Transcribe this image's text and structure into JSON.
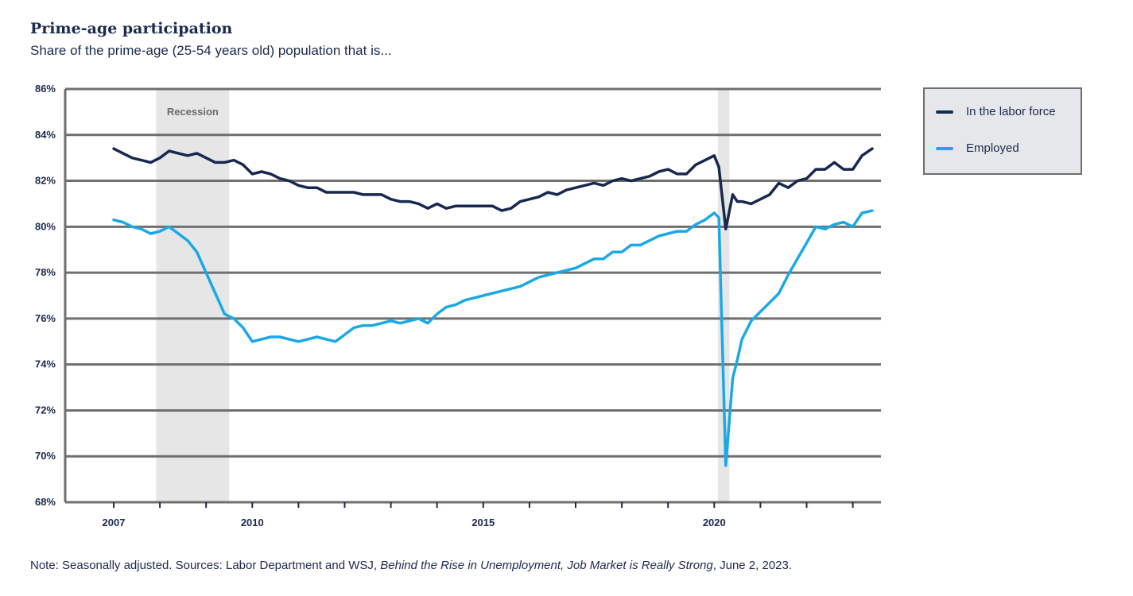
{
  "chart_data": {
    "type": "line",
    "title": "Prime-age participation",
    "subtitle": "Share of the prime-age (25-54 years old) population that is...",
    "ylim": [
      68,
      86
    ],
    "y_ticks": [
      "68%",
      "70%",
      "72%",
      "74%",
      "76%",
      "78%",
      "80%",
      "82%",
      "84%",
      "86%"
    ],
    "y_tick_values": [
      68,
      70,
      72,
      74,
      76,
      78,
      80,
      82,
      84,
      86
    ],
    "xlim": [
      2007.0,
      2023.42
    ],
    "x_ticks": [
      {
        "label": "2007",
        "year": 2007
      },
      {
        "label": "2010",
        "year": 2010
      },
      {
        "label": "2015",
        "year": 2015
      },
      {
        "label": "2020",
        "year": 2020
      }
    ],
    "grid": true,
    "legend_position": "right",
    "shaded_periods": [
      {
        "label": "Recession",
        "start": 2007.92,
        "end": 2009.5
      },
      {
        "label": "",
        "start": 2020.08,
        "end": 2020.33
      }
    ],
    "series": [
      {
        "name": "In the labor force",
        "color": "#17284f",
        "points": [
          [
            2007.0,
            83.4
          ],
          [
            2007.2,
            83.2
          ],
          [
            2007.4,
            83.0
          ],
          [
            2007.6,
            82.9
          ],
          [
            2007.8,
            82.8
          ],
          [
            2008.0,
            83.0
          ],
          [
            2008.2,
            83.3
          ],
          [
            2008.4,
            83.2
          ],
          [
            2008.6,
            83.1
          ],
          [
            2008.8,
            83.2
          ],
          [
            2009.0,
            83.0
          ],
          [
            2009.2,
            82.8
          ],
          [
            2009.4,
            82.8
          ],
          [
            2009.6,
            82.9
          ],
          [
            2009.8,
            82.7
          ],
          [
            2010.0,
            82.3
          ],
          [
            2010.2,
            82.4
          ],
          [
            2010.4,
            82.3
          ],
          [
            2010.6,
            82.1
          ],
          [
            2010.8,
            82.0
          ],
          [
            2011.0,
            81.8
          ],
          [
            2011.2,
            81.7
          ],
          [
            2011.4,
            81.7
          ],
          [
            2011.6,
            81.5
          ],
          [
            2011.8,
            81.5
          ],
          [
            2012.0,
            81.5
          ],
          [
            2012.2,
            81.5
          ],
          [
            2012.4,
            81.4
          ],
          [
            2012.6,
            81.4
          ],
          [
            2012.8,
            81.4
          ],
          [
            2013.0,
            81.2
          ],
          [
            2013.2,
            81.1
          ],
          [
            2013.4,
            81.1
          ],
          [
            2013.6,
            81.0
          ],
          [
            2013.8,
            80.8
          ],
          [
            2014.0,
            81.0
          ],
          [
            2014.2,
            80.8
          ],
          [
            2014.4,
            80.9
          ],
          [
            2014.6,
            80.9
          ],
          [
            2014.8,
            80.9
          ],
          [
            2015.0,
            80.9
          ],
          [
            2015.2,
            80.9
          ],
          [
            2015.4,
            80.7
          ],
          [
            2015.6,
            80.8
          ],
          [
            2015.8,
            81.1
          ],
          [
            2016.0,
            81.2
          ],
          [
            2016.2,
            81.3
          ],
          [
            2016.4,
            81.5
          ],
          [
            2016.6,
            81.4
          ],
          [
            2016.8,
            81.6
          ],
          [
            2017.0,
            81.7
          ],
          [
            2017.2,
            81.8
          ],
          [
            2017.4,
            81.9
          ],
          [
            2017.6,
            81.8
          ],
          [
            2017.8,
            82.0
          ],
          [
            2018.0,
            82.1
          ],
          [
            2018.2,
            82.0
          ],
          [
            2018.4,
            82.1
          ],
          [
            2018.6,
            82.2
          ],
          [
            2018.8,
            82.4
          ],
          [
            2019.0,
            82.5
          ],
          [
            2019.2,
            82.3
          ],
          [
            2019.4,
            82.3
          ],
          [
            2019.6,
            82.7
          ],
          [
            2019.8,
            82.9
          ],
          [
            2020.0,
            83.1
          ],
          [
            2020.1,
            82.6
          ],
          [
            2020.25,
            79.9
          ],
          [
            2020.4,
            81.4
          ],
          [
            2020.5,
            81.1
          ],
          [
            2020.6,
            81.1
          ],
          [
            2020.8,
            81.0
          ],
          [
            2021.0,
            81.2
          ],
          [
            2021.2,
            81.4
          ],
          [
            2021.4,
            81.9
          ],
          [
            2021.6,
            81.7
          ],
          [
            2021.8,
            82.0
          ],
          [
            2022.0,
            82.1
          ],
          [
            2022.2,
            82.5
          ],
          [
            2022.4,
            82.5
          ],
          [
            2022.6,
            82.8
          ],
          [
            2022.8,
            82.5
          ],
          [
            2023.0,
            82.5
          ],
          [
            2023.2,
            83.1
          ],
          [
            2023.42,
            83.4
          ]
        ]
      },
      {
        "name": "Employed",
        "color": "#1aa9e6",
        "points": [
          [
            2007.0,
            80.3
          ],
          [
            2007.2,
            80.2
          ],
          [
            2007.4,
            80.0
          ],
          [
            2007.6,
            79.9
          ],
          [
            2007.8,
            79.7
          ],
          [
            2008.0,
            79.8
          ],
          [
            2008.2,
            80.0
          ],
          [
            2008.4,
            79.7
          ],
          [
            2008.6,
            79.4
          ],
          [
            2008.8,
            78.9
          ],
          [
            2009.0,
            78.0
          ],
          [
            2009.2,
            77.1
          ],
          [
            2009.4,
            76.2
          ],
          [
            2009.6,
            76.0
          ],
          [
            2009.8,
            75.6
          ],
          [
            2010.0,
            75.0
          ],
          [
            2010.2,
            75.1
          ],
          [
            2010.4,
            75.2
          ],
          [
            2010.6,
            75.2
          ],
          [
            2010.8,
            75.1
          ],
          [
            2011.0,
            75.0
          ],
          [
            2011.2,
            75.1
          ],
          [
            2011.4,
            75.2
          ],
          [
            2011.6,
            75.1
          ],
          [
            2011.8,
            75.0
          ],
          [
            2012.0,
            75.3
          ],
          [
            2012.2,
            75.6
          ],
          [
            2012.4,
            75.7
          ],
          [
            2012.6,
            75.7
          ],
          [
            2012.8,
            75.8
          ],
          [
            2013.0,
            75.9
          ],
          [
            2013.2,
            75.8
          ],
          [
            2013.4,
            75.9
          ],
          [
            2013.6,
            76.0
          ],
          [
            2013.8,
            75.8
          ],
          [
            2014.0,
            76.2
          ],
          [
            2014.2,
            76.5
          ],
          [
            2014.4,
            76.6
          ],
          [
            2014.6,
            76.8
          ],
          [
            2014.8,
            76.9
          ],
          [
            2015.0,
            77.0
          ],
          [
            2015.2,
            77.1
          ],
          [
            2015.4,
            77.2
          ],
          [
            2015.6,
            77.3
          ],
          [
            2015.8,
            77.4
          ],
          [
            2016.0,
            77.6
          ],
          [
            2016.2,
            77.8
          ],
          [
            2016.4,
            77.9
          ],
          [
            2016.6,
            78.0
          ],
          [
            2016.8,
            78.1
          ],
          [
            2017.0,
            78.2
          ],
          [
            2017.2,
            78.4
          ],
          [
            2017.4,
            78.6
          ],
          [
            2017.6,
            78.6
          ],
          [
            2017.8,
            78.9
          ],
          [
            2018.0,
            78.9
          ],
          [
            2018.2,
            79.2
          ],
          [
            2018.4,
            79.2
          ],
          [
            2018.6,
            79.4
          ],
          [
            2018.8,
            79.6
          ],
          [
            2019.0,
            79.7
          ],
          [
            2019.2,
            79.8
          ],
          [
            2019.4,
            79.8
          ],
          [
            2019.6,
            80.1
          ],
          [
            2019.8,
            80.3
          ],
          [
            2020.0,
            80.6
          ],
          [
            2020.1,
            80.4
          ],
          [
            2020.25,
            69.6
          ],
          [
            2020.4,
            73.4
          ],
          [
            2020.5,
            74.2
          ],
          [
            2020.6,
            75.1
          ],
          [
            2020.8,
            75.9
          ],
          [
            2021.0,
            76.3
          ],
          [
            2021.2,
            76.7
          ],
          [
            2021.4,
            77.1
          ],
          [
            2021.6,
            77.9
          ],
          [
            2021.8,
            78.6
          ],
          [
            2022.0,
            79.3
          ],
          [
            2022.2,
            80.0
          ],
          [
            2022.4,
            79.9
          ],
          [
            2022.6,
            80.1
          ],
          [
            2022.8,
            80.2
          ],
          [
            2023.0,
            80.0
          ],
          [
            2023.2,
            80.6
          ],
          [
            2023.42,
            80.7
          ]
        ]
      }
    ]
  },
  "note": {
    "prefix": "Note: Seasonally adjusted. Sources: Labor Department and WSJ, ",
    "italic": "Behind the Rise in Unemployment, Job Market is Really Strong",
    "suffix": ", June 2, 2023."
  }
}
